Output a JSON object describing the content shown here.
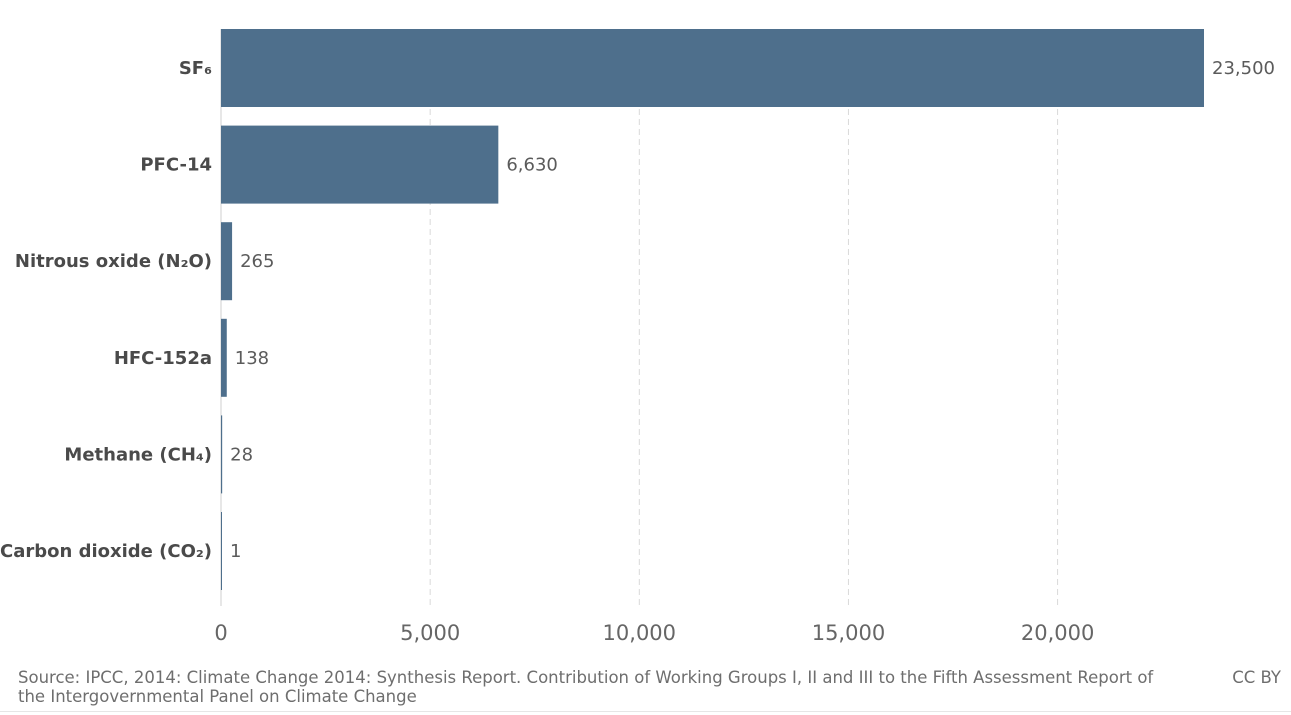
{
  "chart_data": {
    "type": "bar",
    "orientation": "horizontal",
    "categories": [
      "SF₆",
      "PFC-14",
      "Nitrous oxide (N₂O)",
      "HFC-152a",
      "Methane (CH₄)",
      "Carbon dioxide (CO₂)"
    ],
    "values": [
      23500,
      6630,
      265,
      138,
      28,
      1
    ],
    "value_labels": [
      "23,500",
      "6,630",
      "265",
      "138",
      "28",
      "1"
    ],
    "xticks": [
      0,
      5000,
      10000,
      15000,
      20000
    ],
    "xtick_labels": [
      "0",
      "5,000",
      "10,000",
      "15,000",
      "20,000"
    ],
    "xlim": [
      0,
      25000
    ],
    "grid": "vertical dashed",
    "bar_color": "#4e6f8c"
  },
  "footer": {
    "source": "Source: IPCC, 2014: Climate Change 2014: Synthesis Report. Contribution of Working Groups I, II and III to the Fifth Assessment Report of the Intergovernmental Panel on Climate Change",
    "license": "CC BY"
  }
}
